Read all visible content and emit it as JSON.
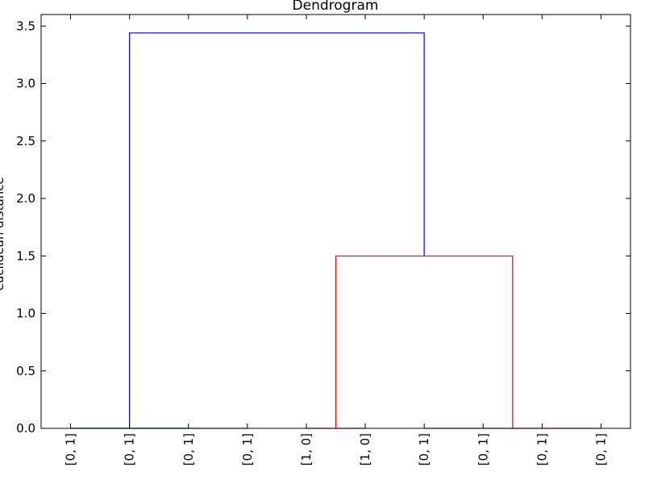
{
  "chart_data": {
    "type": "dendrogram",
    "title": "Dendrogram",
    "xlabel": "",
    "ylabel": "euclidean distance",
    "ylim": [
      0,
      3.6
    ],
    "yticks": [
      0.0,
      0.5,
      1.0,
      1.5,
      2.0,
      2.5,
      3.0,
      3.5
    ],
    "ytick_labels": [
      "0.0",
      "0.5",
      "1.0",
      "1.5",
      "2.0",
      "2.5",
      "3.0",
      "3.5"
    ],
    "leaf_labels": [
      "[0, 1]",
      "[0, 1]",
      "[0, 1]",
      "[0, 1]",
      "[1, 0]",
      "[1, 0]",
      "[0, 1]",
      "[0, 1]",
      "[0, 1]",
      "[0, 1]"
    ],
    "links": [
      {
        "x": [
          0,
          0,
          1,
          1
        ],
        "y": [
          0.0,
          0.0,
          0.0,
          0.0
        ],
        "color": "#008000"
      },
      {
        "x": [
          0,
          0,
          2,
          2
        ],
        "y": [
          0.0,
          0.0,
          0.0,
          0.0
        ],
        "color": "#008000"
      },
      {
        "x": [
          1,
          1,
          3,
          3
        ],
        "y": [
          0.0,
          0.0,
          0.0,
          0.0
        ],
        "color": "#008000"
      },
      {
        "x": [
          4,
          4,
          5,
          5
        ],
        "y": [
          0.0,
          0.0,
          0.0,
          0.0
        ],
        "color": "#ff0000"
      },
      {
        "x": [
          6,
          6,
          7,
          7
        ],
        "y": [
          0.0,
          0.0,
          0.0,
          0.0
        ],
        "color": "#ff0000"
      },
      {
        "x": [
          7,
          7,
          8,
          8
        ],
        "y": [
          0.0,
          0.0,
          0.0,
          0.0
        ],
        "color": "#ff0000"
      },
      {
        "x": [
          8,
          8,
          9,
          9
        ],
        "y": [
          0.0,
          0.0,
          0.0,
          0.0
        ],
        "color": "#ff0000"
      },
      {
        "x": [
          4.5,
          4.5,
          7.5,
          7.5
        ],
        "y": [
          0.0,
          1.5,
          1.5,
          0.0
        ],
        "color": "#ff0000"
      },
      {
        "x": [
          1,
          1,
          6,
          6
        ],
        "y": [
          0.0,
          3.44,
          3.44,
          1.5
        ],
        "color": "#0000ff"
      }
    ],
    "grid": false,
    "legend": "none"
  }
}
